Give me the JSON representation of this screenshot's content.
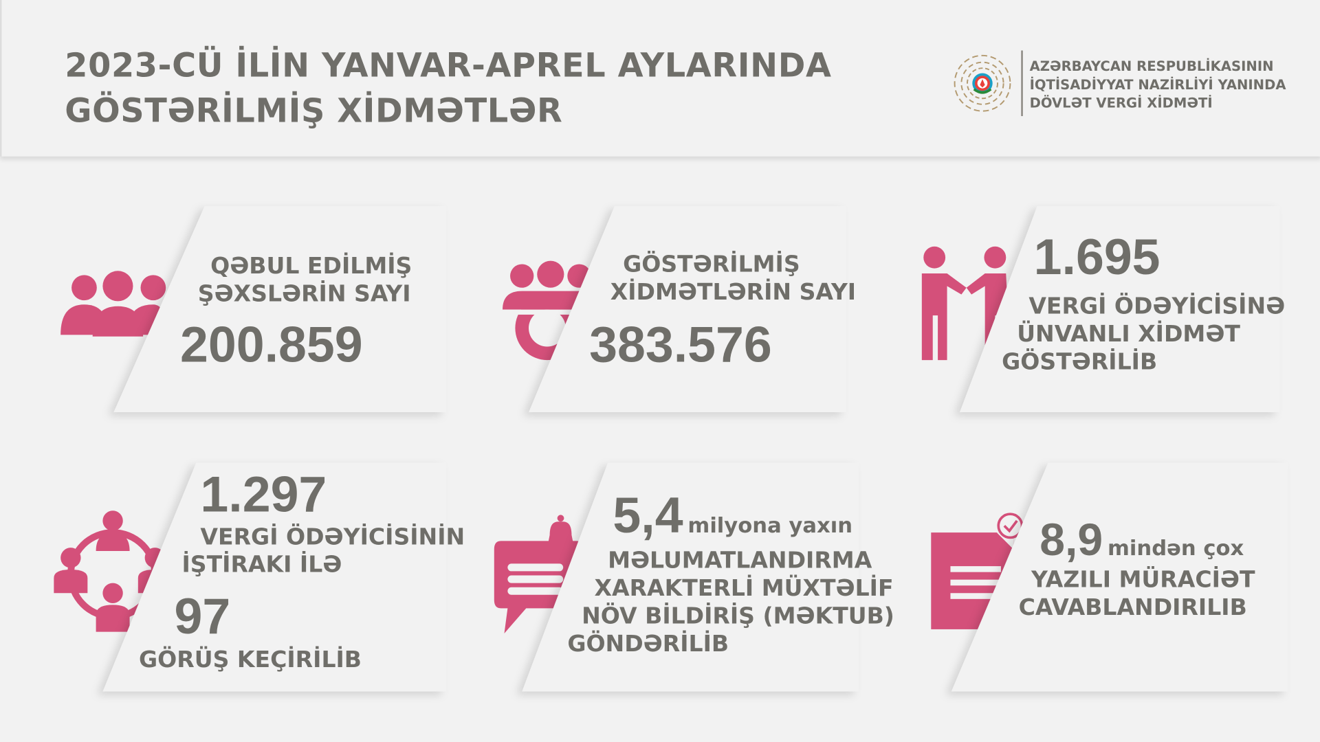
{
  "header": {
    "title_line1": "2023-CÜ İLİN YANVAR-APREL AYLARINDA",
    "title_line2": "GÖSTƏRİLMİŞ XİDMƏTLƏR",
    "org_line1": "AZƏRBAYCAN RESPUBLİKASININ",
    "org_line2": "İQTİSADİYYAT NAZİRLİYİ YANINDA",
    "org_line3": "DÖVLƏT VERGİ XİDMƏTİ",
    "logo_icon": "emblem-icon"
  },
  "colors": {
    "accent": "#d4507a",
    "text": "#6f6e69",
    "background": "#f2f2f2"
  },
  "cards": [
    {
      "icon": "people-group-icon",
      "label1": "QƏBUL EDİLMİŞ",
      "label2": "ŞƏXSLƏRİN SAYI",
      "value": "200.859"
    },
    {
      "icon": "people-gear-icon",
      "label1": "GÖSTƏRİLMİŞ",
      "label2": "XİDMƏTLƏRİN SAYI",
      "value": "383.576"
    },
    {
      "icon": "handshake-icon",
      "value": "1.695",
      "label1": "VERGİ ÖDƏYİCİSİNƏ",
      "label2": "ÜNVANLI XİDMƏT",
      "label3": "GÖSTƏRİLİB"
    },
    {
      "icon": "meeting-icon",
      "value": "1.297",
      "label1": "VERGİ ÖDƏYİCİSİNİN",
      "label2": "İŞTİRAKI İLƏ",
      "value2": "97",
      "label3": "GÖRÜŞ KEÇİRİLİB"
    },
    {
      "icon": "notification-message-icon",
      "value": "5,4",
      "suffix": "milyona yaxın",
      "label1": "MƏLUMATLANDIRMA",
      "label2": "XARAKTERLİ MÜXTƏLİF",
      "label3": "NÖV BİLDİRİŞ (MƏKTUB)",
      "label4": "GÖNDƏRİLİB"
    },
    {
      "icon": "document-check-icon",
      "value": "8,9",
      "suffix": "mindən çox",
      "label1": "YAZILI MÜRACİƏT",
      "label2": "CAVABLANDIRILIB"
    }
  ]
}
